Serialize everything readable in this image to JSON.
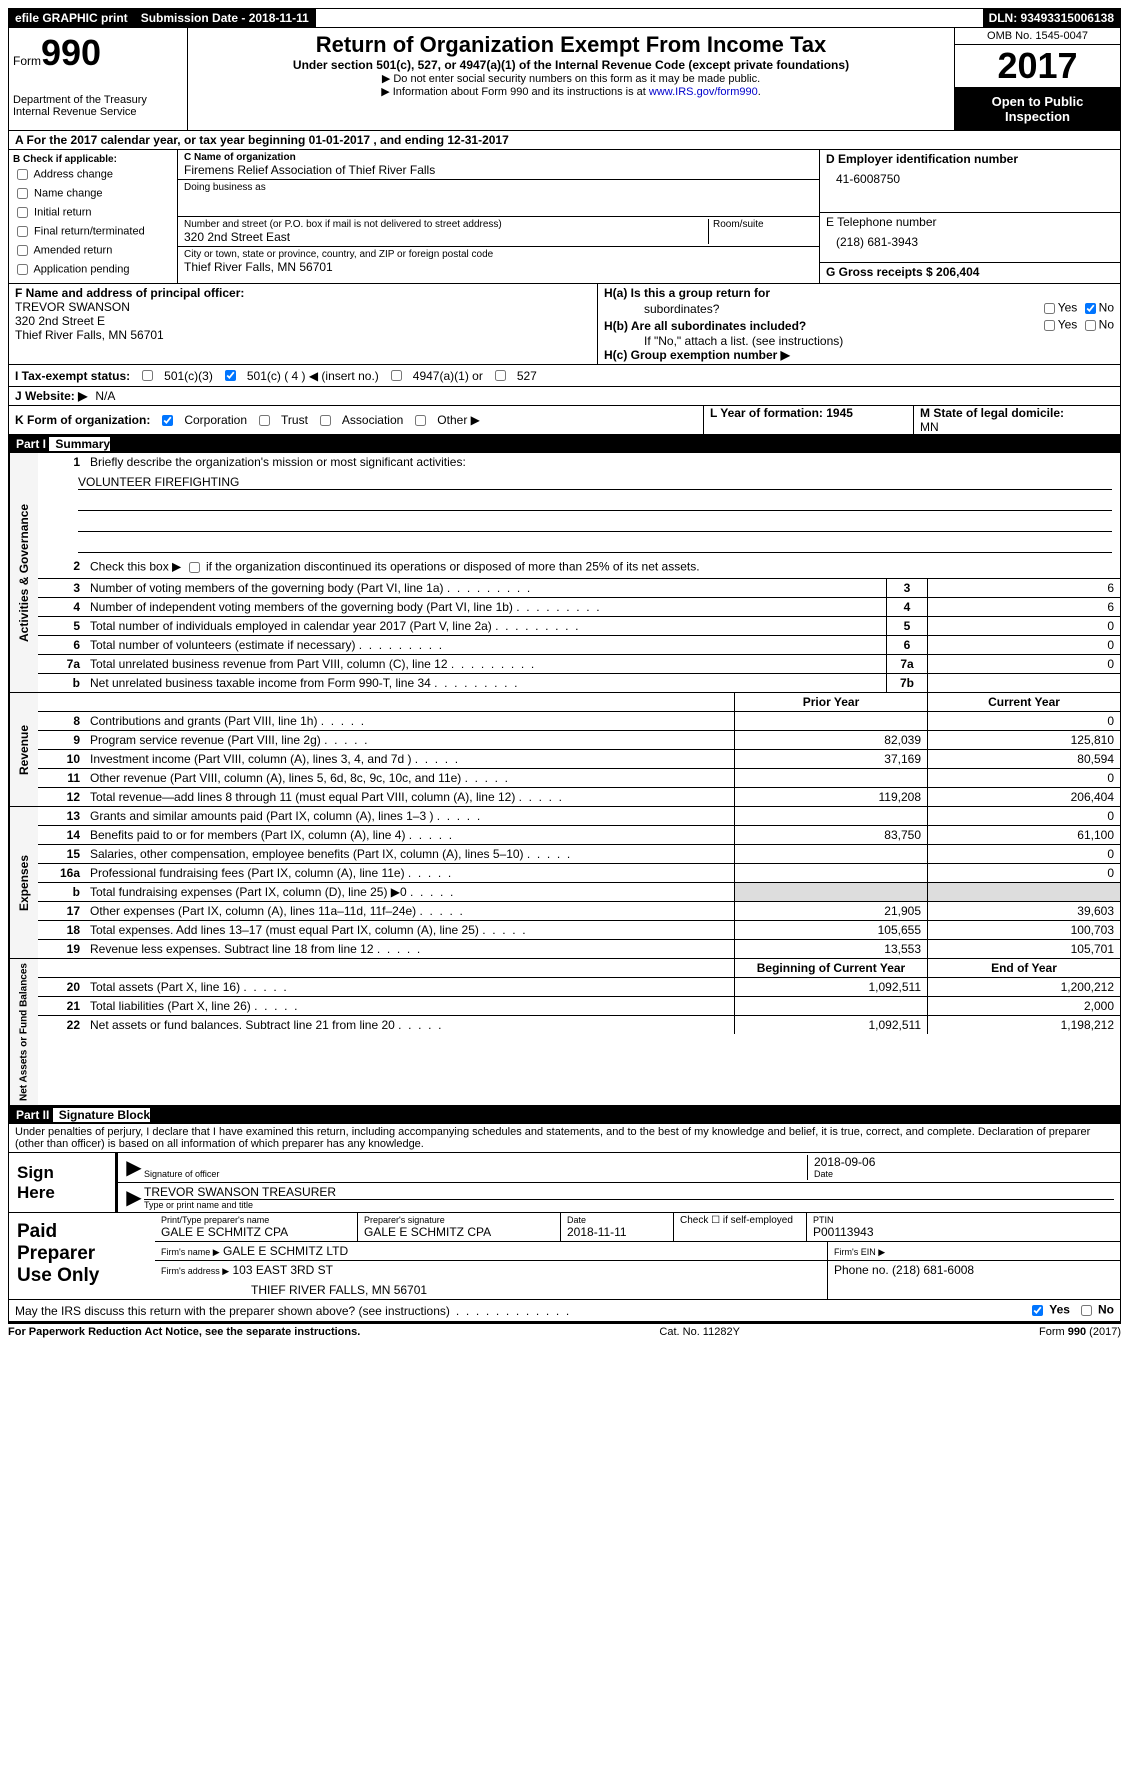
{
  "topbar": {
    "efile": "efile GRAPHIC print",
    "sub_label": "Submission Date - 2018-11-11",
    "dln": "DLN: 93493315006138"
  },
  "header": {
    "form_word": "Form",
    "form_num": "990",
    "dept1": "Department of the Treasury",
    "dept2": "Internal Revenue Service",
    "title": "Return of Organization Exempt From Income Tax",
    "subtitle": "Under section 501(c), 527, or 4947(a)(1) of the Internal Revenue Code (except private foundations)",
    "arrow1": "▶ Do not enter social security numbers on this form as it may be made public.",
    "arrow2_pre": "▶ Information about Form 990 and its instructions is at ",
    "irs_link": "www.IRS.gov/form990",
    "omb": "OMB No. 1545-0047",
    "year": "2017",
    "open1": "Open to Public",
    "open2": "Inspection"
  },
  "rowA": "A  For the 2017 calendar year, or tax year beginning 01-01-2017   , and ending 12-31-2017",
  "B": {
    "label": "B Check if applicable:",
    "opts": [
      "Address change",
      "Name change",
      "Initial return",
      "Final return/terminated",
      "Amended return",
      "Application pending"
    ]
  },
  "C": {
    "name_lbl": "C Name of organization",
    "name": "Firemens Relief Association of Thief River Falls",
    "dba_lbl": "Doing business as",
    "street_lbl": "Number and street (or P.O. box if mail is not delivered to street address)",
    "room_lbl": "Room/suite",
    "street": "320 2nd Street East",
    "city_lbl": "City or town, state or province, country, and ZIP or foreign postal code",
    "city": "Thief River Falls, MN  56701"
  },
  "D": {
    "ein_lbl": "D Employer identification number",
    "ein": "41-6008750",
    "tel_lbl": "E Telephone number",
    "tel": "(218) 681-3943",
    "gross_lbl": "G Gross receipts $ 206,404"
  },
  "F": {
    "lbl": "F  Name and address of principal officer:",
    "name": "TREVOR SWANSON",
    "addr1": "320 2nd Street E",
    "addr2": "Thief River Falls, MN  56701"
  },
  "H": {
    "a_lbl": "H(a)  Is this a group return for",
    "a_sub": "subordinates?",
    "b_lbl": "H(b)  Are all subordinates included?",
    "no_note": "If \"No,\" attach a list. (see instructions)",
    "c_lbl": "H(c)  Group exemption number ▶",
    "yes": "Yes",
    "no": "No"
  },
  "I": {
    "lbl": "I  Tax-exempt status:",
    "c3": "501(c)(3)",
    "c": "501(c) ( 4 ) ◀ (insert no.)",
    "a1": "4947(a)(1) or",
    "s527": "527"
  },
  "J": {
    "lbl": "J  Website: ▶",
    "val": "N/A"
  },
  "K": {
    "lbl": "K Form of organization:",
    "corp": "Corporation",
    "trust": "Trust",
    "assoc": "Association",
    "other": "Other ▶"
  },
  "L": {
    "lbl": "L Year of formation: 1945"
  },
  "M": {
    "lbl": "M State of legal domicile:",
    "val": "MN"
  },
  "partI": {
    "bar": "Part I",
    "title": "Summary"
  },
  "summary": {
    "tabs": [
      "Activities & Governance",
      "Revenue",
      "Expenses",
      "Net Assets or\nFund Balances"
    ],
    "q1": "Briefly describe the organization's mission or most significant activities:",
    "mission": "VOLUNTEER FIREFIGHTING",
    "q2_pre": "Check this box ▶",
    "q2_post": "if the organization discontinued its operations or disposed of more than 25% of its net assets.",
    "lines": [
      {
        "n": "3",
        "d": "Number of voting members of the governing body (Part VI, line 1a)",
        "box": "3",
        "cur": "6"
      },
      {
        "n": "4",
        "d": "Number of independent voting members of the governing body (Part VI, line 1b)",
        "box": "4",
        "cur": "6"
      },
      {
        "n": "5",
        "d": "Total number of individuals employed in calendar year 2017 (Part V, line 2a)",
        "box": "5",
        "cur": "0"
      },
      {
        "n": "6",
        "d": "Total number of volunteers (estimate if necessary)",
        "box": "6",
        "cur": "0"
      },
      {
        "n": "7a",
        "d": "Total unrelated business revenue from Part VIII, column (C), line 12",
        "box": "7a",
        "cur": "0"
      },
      {
        "n": "b",
        "d": "Net unrelated business taxable income from Form 990-T, line 34",
        "box": "7b",
        "cur": ""
      }
    ],
    "hdr_prior": "Prior Year",
    "hdr_cur": "Current Year",
    "rev": [
      {
        "n": "8",
        "d": "Contributions and grants (Part VIII, line 1h)",
        "p": "",
        "c": "0"
      },
      {
        "n": "9",
        "d": "Program service revenue (Part VIII, line 2g)",
        "p": "82,039",
        "c": "125,810"
      },
      {
        "n": "10",
        "d": "Investment income (Part VIII, column (A), lines 3, 4, and 7d )",
        "p": "37,169",
        "c": "80,594"
      },
      {
        "n": "11",
        "d": "Other revenue (Part VIII, column (A), lines 5, 6d, 8c, 9c, 10c, and 11e)",
        "p": "",
        "c": "0"
      },
      {
        "n": "12",
        "d": "Total revenue—add lines 8 through 11 (must equal Part VIII, column (A), line 12)",
        "p": "119,208",
        "c": "206,404"
      }
    ],
    "exp": [
      {
        "n": "13",
        "d": "Grants and similar amounts paid (Part IX, column (A), lines 1–3 )",
        "p": "",
        "c": "0"
      },
      {
        "n": "14",
        "d": "Benefits paid to or for members (Part IX, column (A), line 4)",
        "p": "83,750",
        "c": "61,100"
      },
      {
        "n": "15",
        "d": "Salaries, other compensation, employee benefits (Part IX, column (A), lines 5–10)",
        "p": "",
        "c": "0"
      },
      {
        "n": "16a",
        "d": "Professional fundraising fees (Part IX, column (A), line 11e)",
        "p": "",
        "c": "0"
      },
      {
        "n": "b",
        "d": "Total fundraising expenses (Part IX, column (D), line 25) ▶0",
        "p": "GREY",
        "c": "GREY"
      },
      {
        "n": "17",
        "d": "Other expenses (Part IX, column (A), lines 11a–11d, 11f–24e)",
        "p": "21,905",
        "c": "39,603"
      },
      {
        "n": "18",
        "d": "Total expenses. Add lines 13–17 (must equal Part IX, column (A), line 25)",
        "p": "105,655",
        "c": "100,703"
      },
      {
        "n": "19",
        "d": "Revenue less expenses. Subtract line 18 from line 12",
        "p": "13,553",
        "c": "105,701"
      }
    ],
    "hdr_beg": "Beginning of Current Year",
    "hdr_end": "End of Year",
    "net": [
      {
        "n": "20",
        "d": "Total assets (Part X, line 16)",
        "p": "1,092,511",
        "c": "1,200,212"
      },
      {
        "n": "21",
        "d": "Total liabilities (Part X, line 26)",
        "p": "",
        "c": "2,000"
      },
      {
        "n": "22",
        "d": "Net assets or fund balances. Subtract line 21 from line 20",
        "p": "1,092,511",
        "c": "1,198,212"
      }
    ]
  },
  "partII": {
    "bar": "Part II",
    "title": "Signature Block"
  },
  "sig": {
    "perjury": "Under penalties of perjury, I declare that I have examined this return, including accompanying schedules and statements, and to the best of my knowledge and belief, it is true, correct, and complete. Declaration of preparer (other than officer) is based on all information of which preparer has any knowledge.",
    "sign_here": "Sign\nHere",
    "sig_lbl": "Signature of officer",
    "date_lbl": "Date",
    "sig_date": "2018-09-06",
    "officer": "TREVOR SWANSON TREASURER",
    "name_lbl": "Type or print name and title"
  },
  "prep": {
    "label": "Paid\nPreparer\nUse Only",
    "print_lbl": "Print/Type preparer's name",
    "print_val": "GALE E SCHMITZ CPA",
    "sig_lbl": "Preparer's signature",
    "sig_val": "GALE E SCHMITZ CPA",
    "date_lbl": "Date",
    "date_val": "2018-11-11",
    "check_lbl": "Check ☐ if self-employed",
    "ptin_lbl": "PTIN",
    "ptin_val": "P00113943",
    "firm_name_lbl": "Firm's name    ▶",
    "firm_name": "GALE E SCHMITZ LTD",
    "firm_ein_lbl": "Firm's EIN ▶",
    "firm_addr_lbl": "Firm's address ▶",
    "firm_addr": "103 EAST 3RD ST",
    "firm_city": "THIEF RIVER FALLS, MN  56701",
    "phone_lbl": "Phone no. (218) 681-6008"
  },
  "discuss": {
    "q": "May the IRS discuss this return with the preparer shown above? (see instructions)",
    "yes": "Yes",
    "no": "No"
  },
  "footer": {
    "left": "For Paperwork Reduction Act Notice, see the separate instructions.",
    "mid": "Cat. No. 11282Y",
    "right": "Form 990 (2017)"
  }
}
